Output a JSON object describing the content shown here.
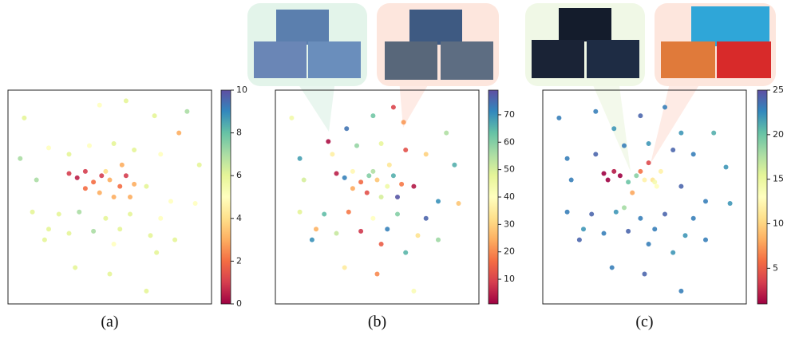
{
  "chart_data": [
    {
      "type": "scatter",
      "caption": "(a)",
      "colormap": "Spectral",
      "xlim": [
        0,
        100
      ],
      "ylim": [
        0,
        100
      ],
      "clim": [
        0,
        10
      ],
      "cticks": [
        0,
        2,
        4,
        6,
        8,
        10
      ],
      "x": [
        8,
        45,
        58,
        72,
        88,
        84,
        6,
        20,
        30,
        40,
        52,
        62,
        75,
        94,
        14,
        68,
        80,
        92,
        12,
        25,
        35,
        48,
        60,
        75,
        20,
        30,
        42,
        55,
        70,
        82,
        18,
        52,
        73,
        33,
        50,
        68,
        30,
        34,
        38,
        42,
        46,
        50,
        55,
        58,
        45,
        52,
        60,
        38,
        48,
        56,
        62
      ],
      "y": [
        87,
        93,
        95,
        88,
        90,
        80,
        68,
        73,
        70,
        74,
        75,
        72,
        70,
        65,
        58,
        55,
        48,
        47,
        43,
        42,
        43,
        40,
        42,
        40,
        35,
        33,
        34,
        35,
        32,
        30,
        30,
        28,
        24,
        17,
        14,
        6,
        61,
        59,
        62,
        57,
        60,
        58,
        55,
        60,
        52,
        50,
        50,
        54,
        62,
        65,
        56
      ],
      "c": [
        6,
        5,
        6,
        6,
        7,
        3,
        7,
        5,
        6,
        5,
        6,
        6,
        5,
        6,
        7,
        6,
        5,
        5,
        6,
        6,
        7,
        6,
        6,
        5,
        6,
        6,
        7,
        6,
        6,
        6,
        6,
        5,
        6,
        6,
        6,
        6,
        1,
        0.5,
        1,
        2,
        1,
        3,
        2,
        1,
        3,
        3,
        3,
        2,
        4,
        3,
        3
      ]
    },
    {
      "type": "scatter",
      "caption": "(b)",
      "colormap": "Spectral",
      "xlim": [
        0,
        100
      ],
      "ylim": [
        0,
        100
      ],
      "clim": [
        1,
        79
      ],
      "cticks": [
        10,
        20,
        30,
        40,
        50,
        60,
        70
      ],
      "x": [
        8,
        26,
        35,
        48,
        58,
        63,
        84,
        12,
        28,
        40,
        52,
        64,
        74,
        88,
        14,
        68,
        80,
        90,
        12,
        24,
        36,
        48,
        60,
        74,
        20,
        30,
        42,
        55,
        70,
        80,
        18,
        52,
        64,
        34,
        50,
        68,
        30,
        34,
        38,
        42,
        46,
        50,
        55,
        58,
        45,
        52,
        60,
        38,
        48,
        56,
        62
      ],
      "y": [
        87,
        76,
        82,
        88,
        92,
        85,
        80,
        68,
        70,
        74,
        75,
        72,
        70,
        65,
        58,
        55,
        48,
        47,
        43,
        42,
        43,
        40,
        42,
        40,
        35,
        33,
        34,
        35,
        32,
        30,
        30,
        28,
        24,
        17,
        14,
        6,
        61,
        59,
        62,
        57,
        60,
        58,
        55,
        60,
        52,
        50,
        50,
        54,
        62,
        65,
        56
      ],
      "c": [
        44,
        3,
        74,
        62,
        10,
        22,
        55,
        68,
        36,
        58,
        47,
        12,
        30,
        66,
        50,
        4,
        70,
        28,
        48,
        64,
        18,
        40,
        60,
        76,
        25,
        52,
        8,
        72,
        33,
        57,
        70,
        14,
        65,
        35,
        20,
        42,
        5,
        72,
        38,
        16,
        60,
        28,
        45,
        66,
        12,
        50,
        78,
        24,
        55,
        34,
        18
      ]
    },
    {
      "type": "scatter",
      "caption": "(c)",
      "colormap": "Spectral",
      "xlim": [
        0,
        100
      ],
      "ylim": [
        0,
        100
      ],
      "clim": [
        1,
        25
      ],
      "cticks": [
        5,
        10,
        15,
        20,
        25
      ],
      "x": [
        8,
        26,
        35,
        48,
        60,
        68,
        84,
        12,
        26,
        40,
        52,
        64,
        74,
        90,
        14,
        68,
        80,
        92,
        12,
        24,
        36,
        48,
        60,
        74,
        20,
        30,
        42,
        55,
        70,
        80,
        18,
        52,
        64,
        34,
        50,
        68,
        30,
        32,
        35,
        38,
        42,
        46,
        50,
        54,
        56,
        58,
        44,
        40,
        48,
        52,
        55
      ],
      "y": [
        87,
        90,
        82,
        88,
        92,
        80,
        80,
        68,
        70,
        74,
        75,
        72,
        70,
        64,
        58,
        55,
        48,
        47,
        43,
        42,
        43,
        40,
        42,
        40,
        35,
        33,
        34,
        35,
        32,
        30,
        30,
        28,
        24,
        17,
        14,
        6,
        61,
        58,
        62,
        60,
        57,
        60,
        58,
        58,
        55,
        62,
        52,
        45,
        62,
        66,
        57
      ],
      "c": [
        23,
        23,
        22,
        24,
        23,
        22,
        21,
        23,
        24,
        23,
        22,
        24,
        23,
        22,
        23,
        24,
        23,
        22,
        23,
        24,
        22,
        23,
        24,
        23,
        22,
        23,
        24,
        23,
        22,
        23,
        24,
        23,
        22,
        23,
        24,
        23,
        1,
        1,
        2,
        1,
        20,
        19,
        12,
        11,
        13,
        12,
        8,
        18,
        6,
        4,
        14
      ]
    }
  ]
}
